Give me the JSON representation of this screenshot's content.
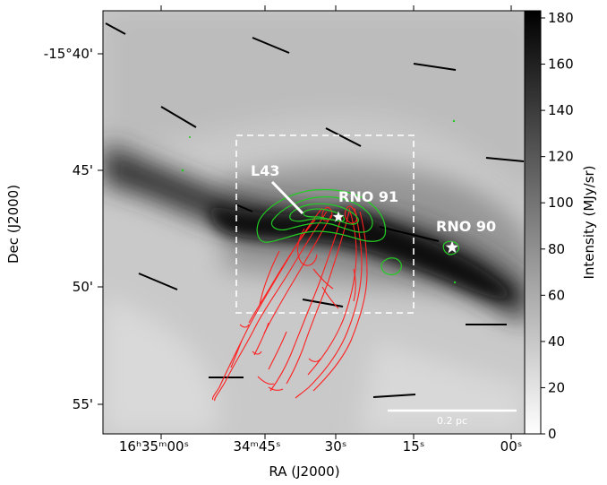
{
  "axes": {
    "xlabel": "RA (J2000)",
    "ylabel": "Dec (J2000)",
    "x_ticks": [
      {
        "label": "16ʰ35ᵐ00ˢ"
      },
      {
        "label": "34ᵐ45ˢ"
      },
      {
        "label": "30ˢ"
      },
      {
        "label": "15ˢ"
      },
      {
        "label": "00ˢ"
      }
    ],
    "y_ticks": [
      {
        "label": "-15°40'"
      },
      {
        "label": "45'"
      },
      {
        "label": "50'"
      },
      {
        "label": "55'"
      }
    ]
  },
  "colorbar": {
    "label": "Intensity (MJy/sr)",
    "ticks": [
      "0",
      "20",
      "40",
      "60",
      "80",
      "100",
      "120",
      "140",
      "160",
      "180"
    ],
    "range": [
      0,
      180
    ],
    "colors": {
      "low": "#ffffff",
      "high": "#000000"
    }
  },
  "annotations": {
    "l43": "L43",
    "rno91": "RNO 91",
    "rno90": "RNO 90",
    "scalebar": "0.2 pc"
  },
  "colors": {
    "outflow_contours": "#ff2020",
    "dense_core_contours": "#22cc22",
    "polarization_vectors": "#000000",
    "box": "#ffffff"
  }
}
